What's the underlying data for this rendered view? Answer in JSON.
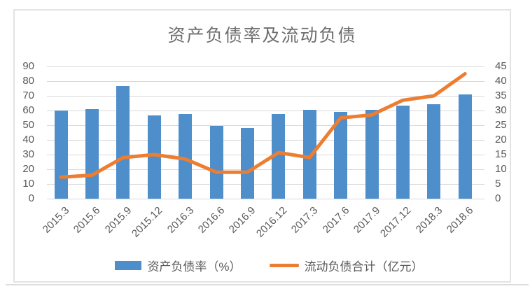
{
  "chart_data": {
    "type": "bar",
    "combo": "bar+line dual axis",
    "title": "资产负债率及流动负债",
    "categories": [
      "2015.3",
      "2015.6",
      "2015.9",
      "2015.12",
      "2016.3",
      "2016.6",
      "2016.9",
      "2016.12",
      "2017.3",
      "2017.6",
      "2017.9",
      "2017.12",
      "2018.3",
      "2018.6"
    ],
    "series": [
      {
        "name": "资产负债率（%）",
        "type": "bar",
        "axis": "left",
        "color": "#4e8ecb",
        "values": [
          60,
          61,
          76.5,
          56.5,
          57.5,
          49.5,
          48,
          57.5,
          60.5,
          59,
          60.5,
          63.5,
          64.5,
          71
        ]
      },
      {
        "name": "流动负债合计（亿元）",
        "type": "line",
        "axis": "right",
        "color": "#ed7d31",
        "values": [
          7.3,
          8,
          14,
          15,
          13.5,
          9,
          9,
          15.7,
          14,
          27.5,
          28.5,
          33.5,
          35,
          42.5
        ]
      }
    ],
    "left_axis": {
      "min": 0,
      "max": 90,
      "step": 10,
      "ticks": [
        "0",
        "10",
        "20",
        "30",
        "40",
        "50",
        "60",
        "70",
        "80",
        "90"
      ]
    },
    "right_axis": {
      "min": 0,
      "max": 45,
      "step": 5,
      "ticks": [
        "0",
        "5",
        "10",
        "15",
        "20",
        "25",
        "30",
        "35",
        "40",
        "45"
      ]
    },
    "grid": true,
    "legend_position": "bottom",
    "xlabel": "",
    "ylabel": ""
  },
  "colors": {
    "bar": "#4e8ecb",
    "line": "#ed7d31",
    "gridline": "#d9d9d9",
    "axis_text": "#595959",
    "title_text": "#6e6e6e",
    "frame_border": "#e3e3e3"
  }
}
